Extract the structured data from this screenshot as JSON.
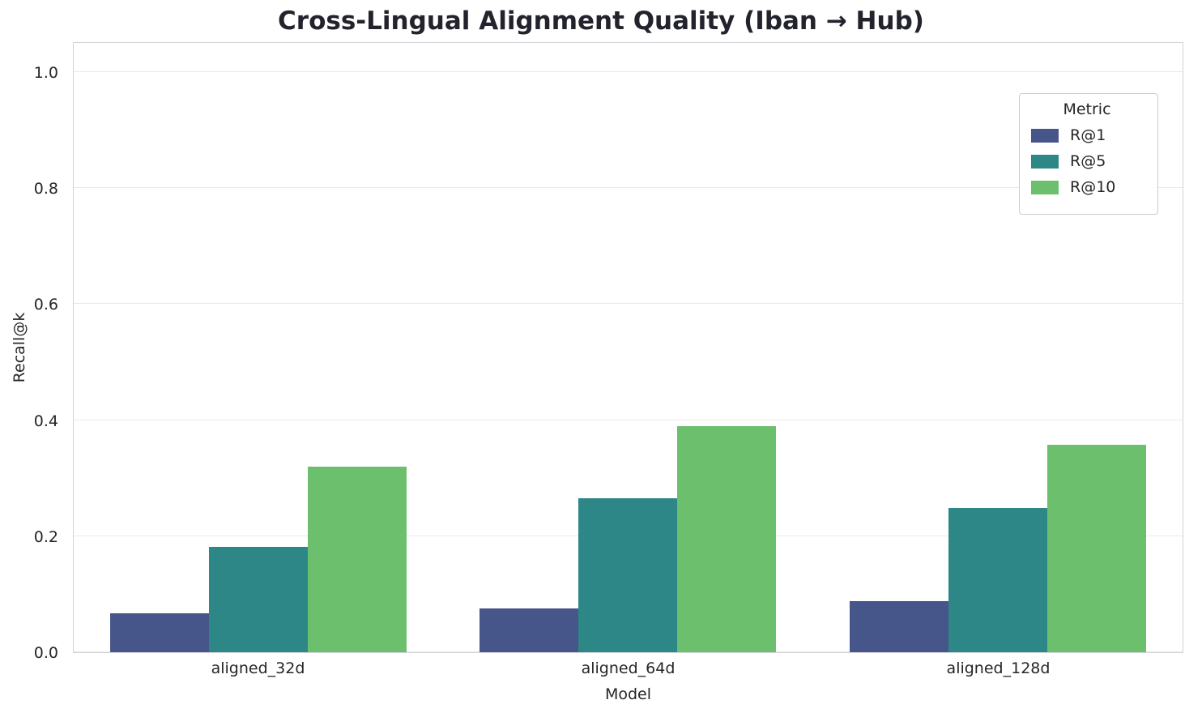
{
  "title": "Cross-Lingual Alignment Quality (Iban → Hub)",
  "chart_data": {
    "type": "bar",
    "title": "Cross-Lingual Alignment Quality (Iban → Hub)",
    "xlabel": "Model",
    "ylabel": "Recall@k",
    "categories": [
      "aligned_32d",
      "aligned_64d",
      "aligned_128d"
    ],
    "series": [
      {
        "name": "R@1",
        "color": "#47568a",
        "values": [
          0.067,
          0.075,
          0.088
        ]
      },
      {
        "name": "R@5",
        "color": "#2d8786",
        "values": [
          0.182,
          0.265,
          0.248
        ]
      },
      {
        "name": "R@10",
        "color": "#6cbf6d",
        "values": [
          0.32,
          0.39,
          0.358
        ]
      }
    ],
    "ylim": [
      0,
      1.05
    ],
    "yticks": [
      0.0,
      0.2,
      0.4,
      0.6,
      0.8,
      1.0
    ],
    "legend_title": "Metric",
    "legend_position": "upper right",
    "grid": true
  }
}
